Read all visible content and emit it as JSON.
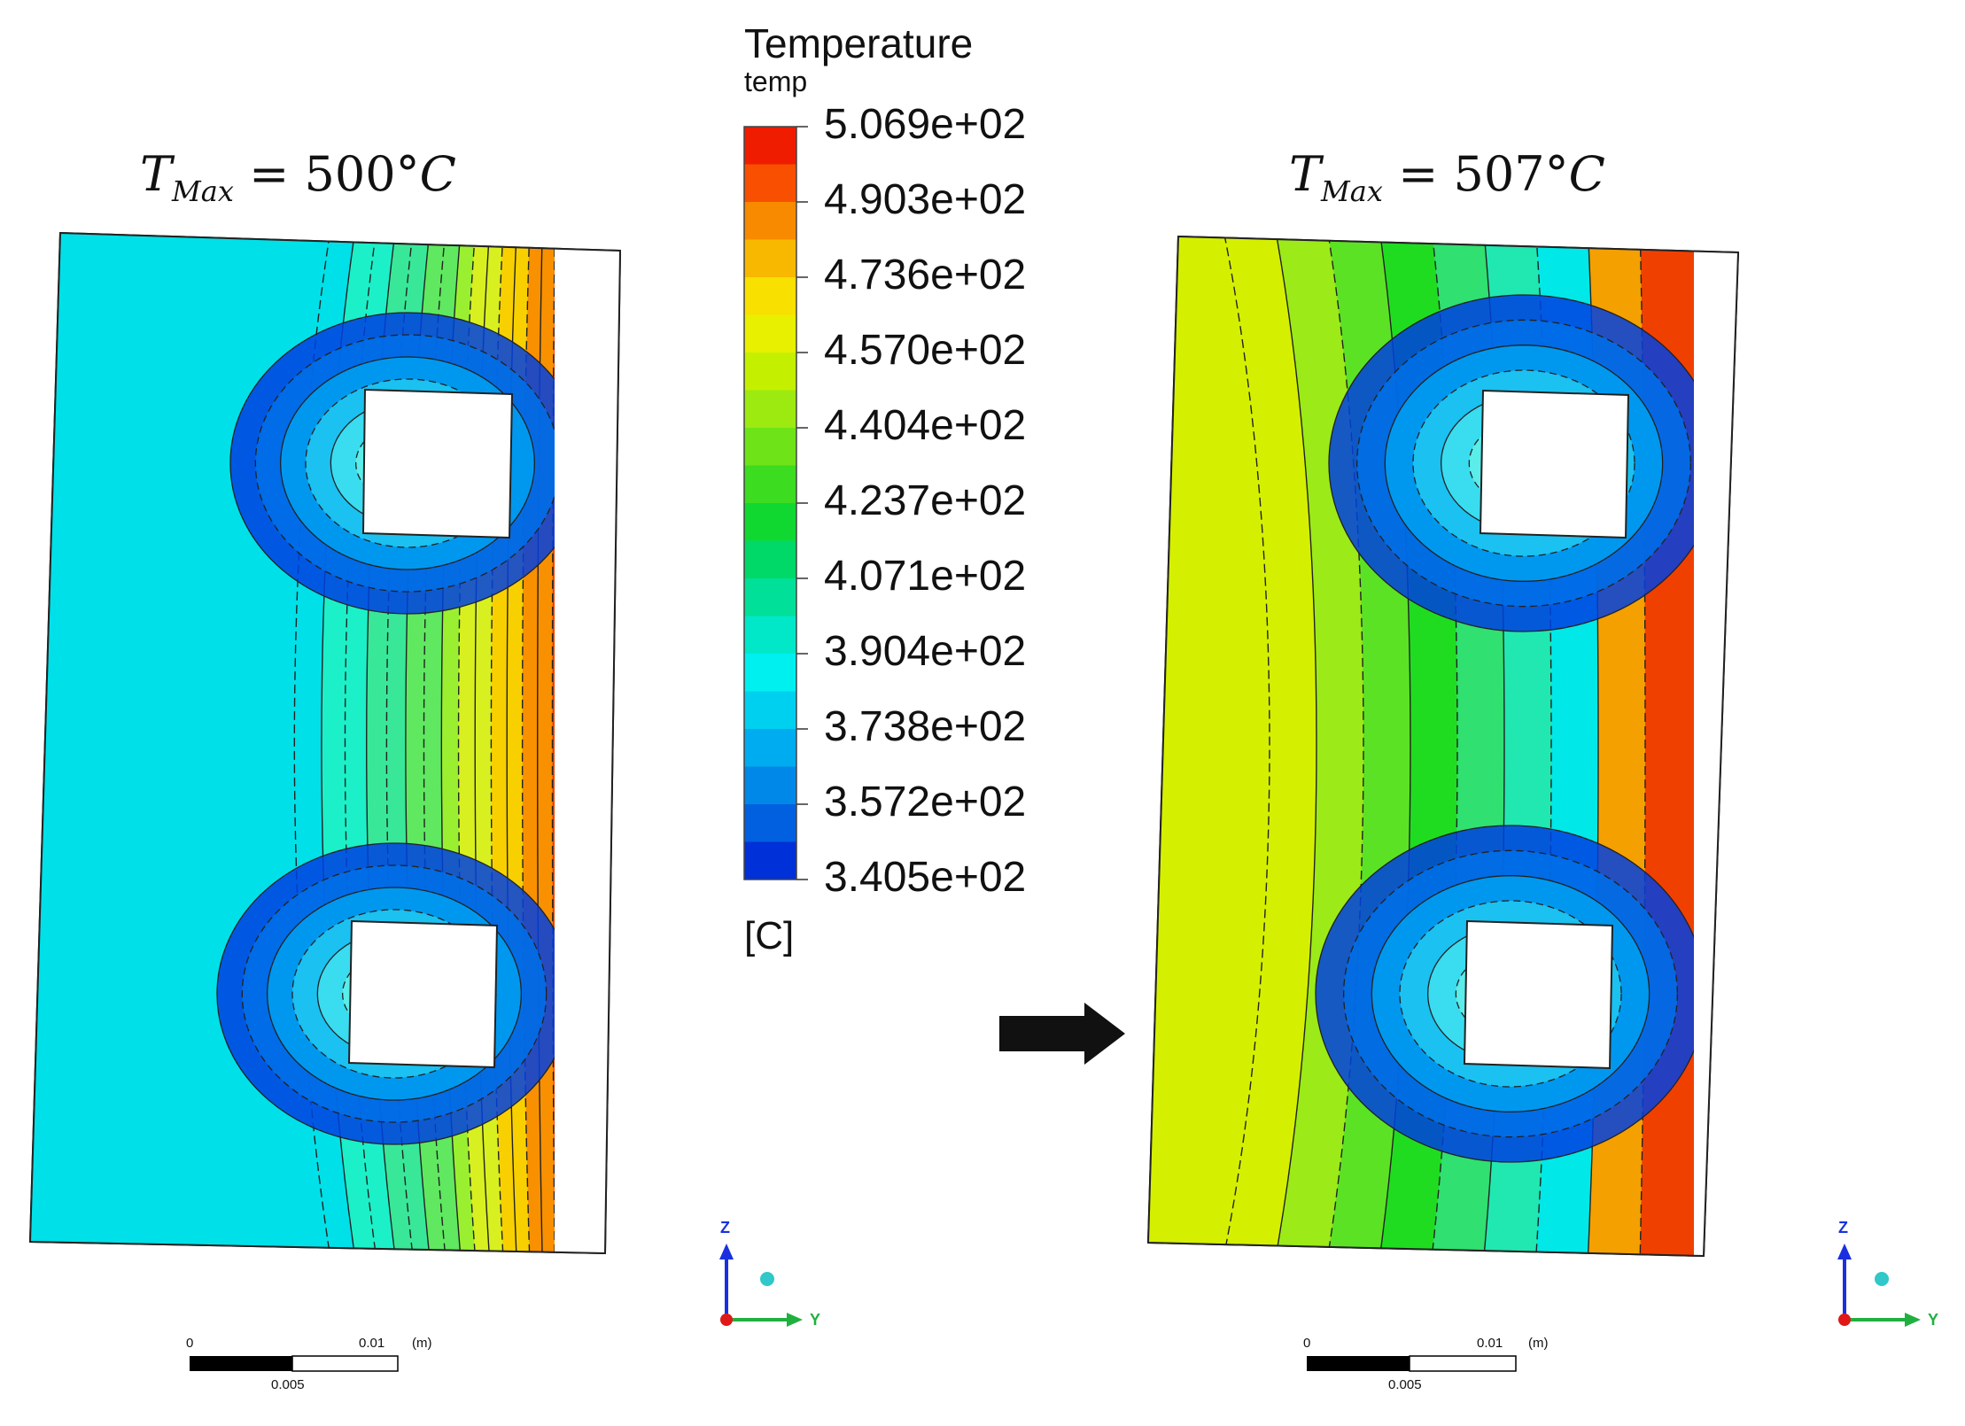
{
  "panels": [
    {
      "tmax_symbol": "T",
      "tmax_sub": "Max",
      "tmax_value": " = 500°",
      "tmax_unit": "C",
      "palette": [
        "#00e0e8",
        "#1cf0c8",
        "#38e898",
        "#60e860",
        "#9af030",
        "#d8f020",
        "#f8d000",
        "#f89000",
        "#f04000"
      ]
    },
    {
      "tmax_symbol": "T",
      "tmax_sub": "Max",
      "tmax_value": " = 507°",
      "tmax_unit": "C",
      "palette": [
        "#d4f000",
        "#9cea18",
        "#5ce224",
        "#20dc20",
        "#30e070",
        "#20e8b0",
        "#00e8e8",
        "#f4a000",
        "#f04000"
      ]
    }
  ],
  "legend": {
    "title": "Temperature",
    "subtitle": "temp",
    "unit": "[C]",
    "ticks": [
      "5.069e+02",
      "4.903e+02",
      "4.736e+02",
      "4.570e+02",
      "4.404e+02",
      "4.237e+02",
      "4.071e+02",
      "3.904e+02",
      "3.738e+02",
      "3.572e+02",
      "3.405e+02"
    ],
    "colors": [
      "#f01c00",
      "#f85000",
      "#f88a00",
      "#f8b800",
      "#f8e000",
      "#e8f000",
      "#c4f000",
      "#9cea10",
      "#6ee418",
      "#3cdc20",
      "#10d830",
      "#00d868",
      "#00e098",
      "#00e8c8",
      "#00f0f0",
      "#00d0f0",
      "#00acf0",
      "#0088e8",
      "#0060e0",
      "#0030d8"
    ]
  },
  "scale_bar": {
    "start": "0",
    "end": "0.01",
    "unit": "(m)",
    "mid": "0.005"
  },
  "axes_triad": {
    "z_label": "Z",
    "y_label": "Y"
  }
}
